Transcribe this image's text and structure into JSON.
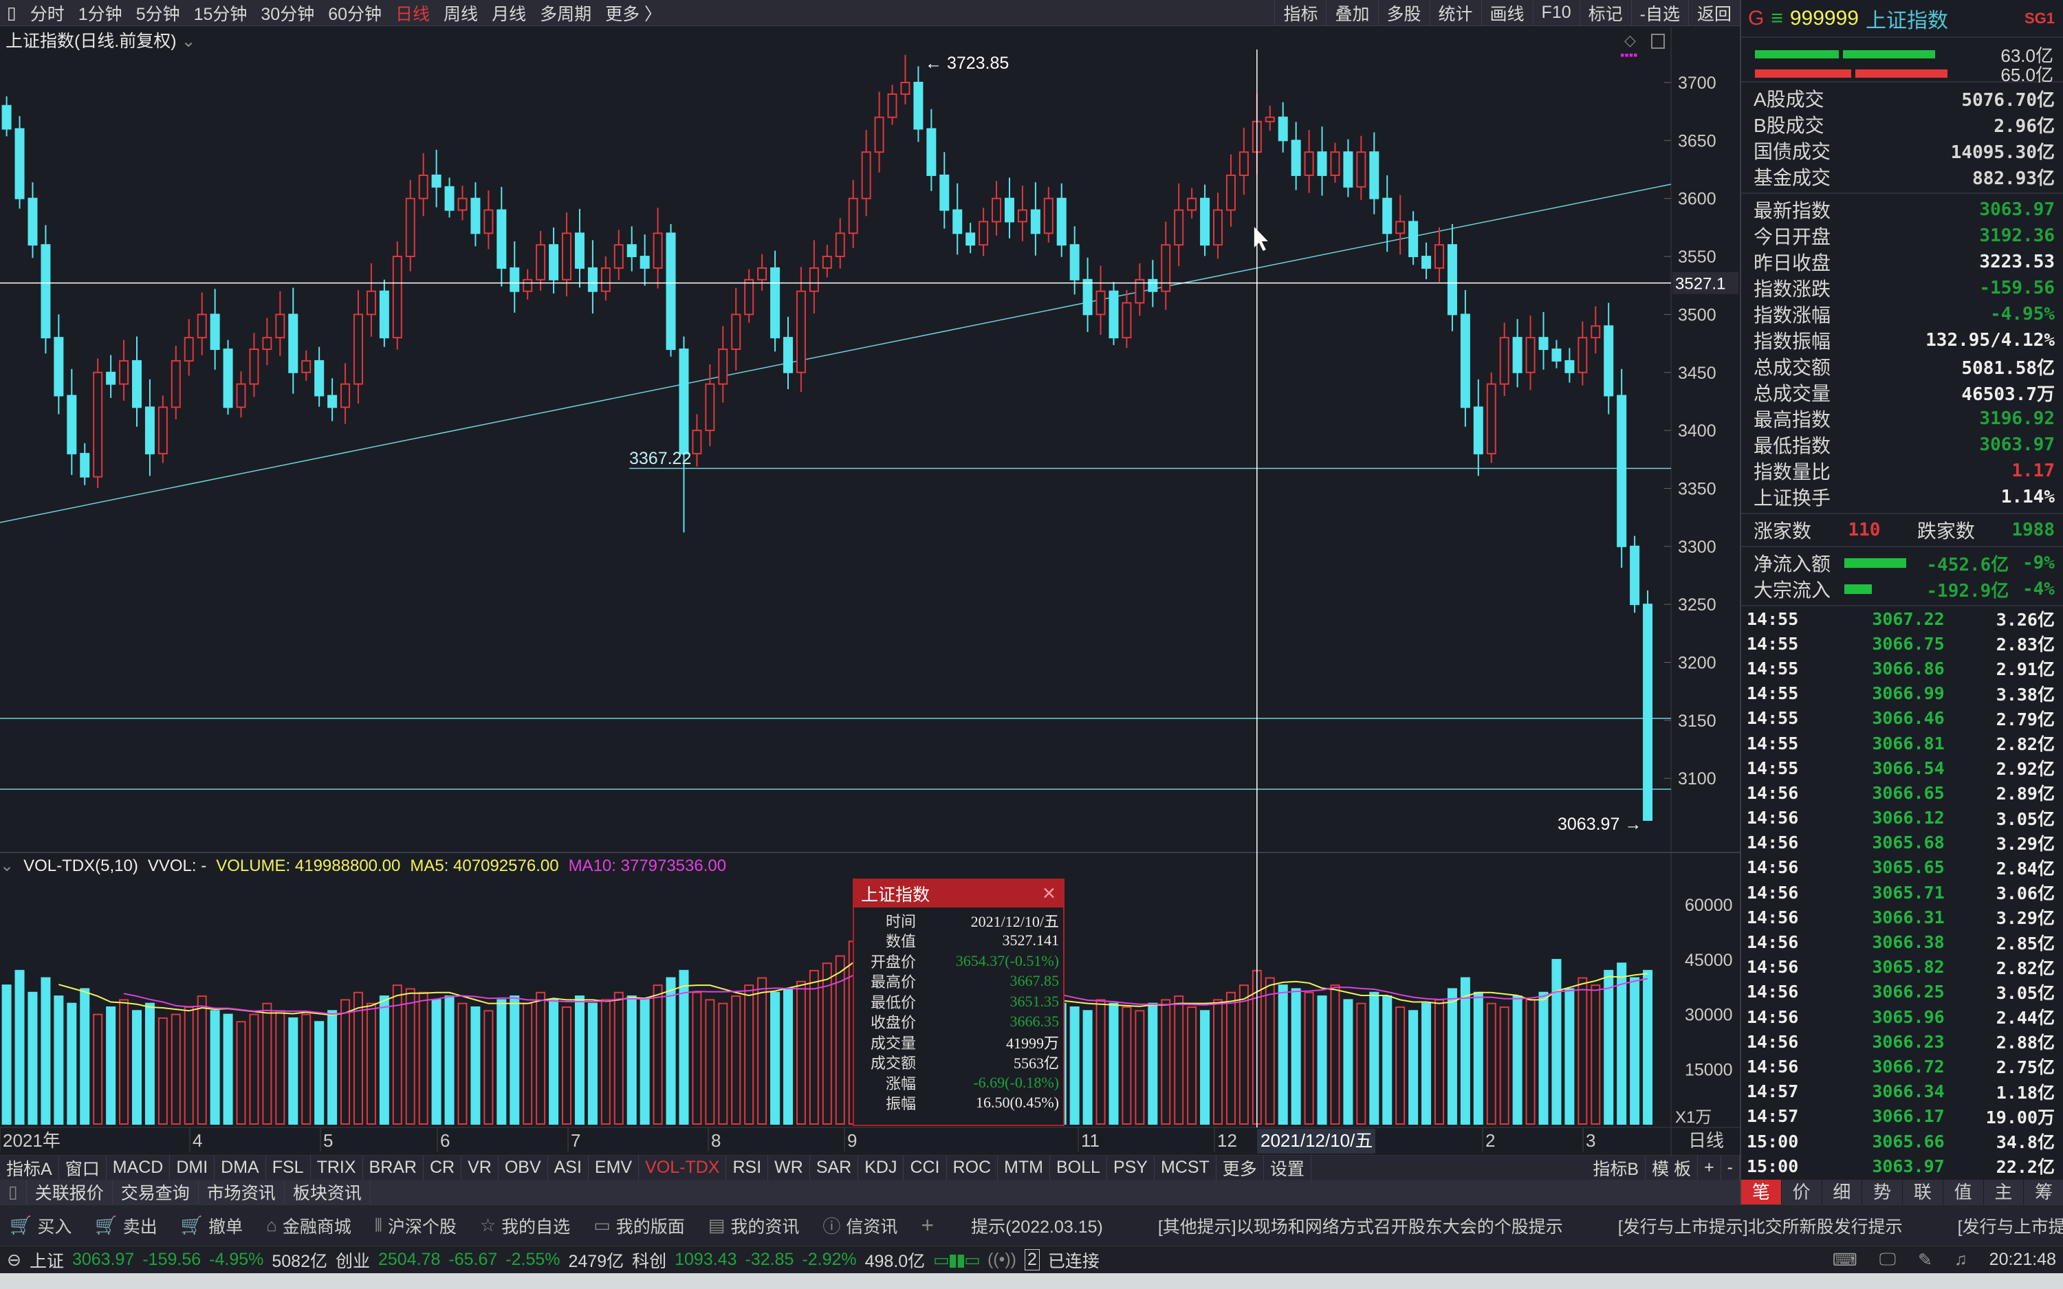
{
  "topbar": {
    "periods": [
      "分时",
      "1分钟",
      "5分钟",
      "15分钟",
      "30分钟",
      "60分钟",
      "日线",
      "周线",
      "月线",
      "多周期",
      "更多 〉"
    ],
    "active": "日线",
    "tools": [
      "指标",
      "叠加",
      "多股",
      "统计",
      "画线",
      "F10",
      "标记",
      "-自选",
      "返回"
    ]
  },
  "chart_title": "上证指数(日线.前复权)",
  "vol_header": {
    "name": "VOL-TDX(5,10)",
    "vvol": "VVOL: -",
    "volume": "VOLUME: 419988800.00",
    "ma5": "MA5: 407092576.00",
    "ma10": "MA10: 377973536.00"
  },
  "colors": {
    "up": "#e0383d",
    "down": "#55e6f0",
    "ma5": "#f2f25a",
    "ma10": "#e040e0",
    "bg": "#1b1d24"
  },
  "chart_data": {
    "type": "candlestick",
    "price_ticks": [
      3700,
      3650,
      3600,
      3550,
      3500,
      3450,
      3400,
      3350,
      3300,
      3250,
      3200,
      3150,
      3100
    ],
    "vol_ticks": [
      60000,
      45000,
      30000,
      15000
    ],
    "vol_unit": "X1万",
    "x_labels": [
      "2021年",
      "4",
      "5",
      "6",
      "7",
      "8",
      "9",
      "11",
      "12",
      "2",
      "3"
    ],
    "x_axis_period": "日线",
    "crosshair": {
      "price": "3527.1",
      "date": "2021/12/10/五"
    },
    "annotations": {
      "high": "3723.85",
      "mid_low": "3367.22",
      "last": "3063.97"
    },
    "closes": [
      3660,
      3600,
      3560,
      3480,
      3430,
      3380,
      3360,
      3450,
      3440,
      3460,
      3420,
      3380,
      3420,
      3460,
      3480,
      3500,
      3470,
      3420,
      3440,
      3470,
      3480,
      3500,
      3450,
      3460,
      3430,
      3420,
      3440,
      3500,
      3520,
      3480,
      3550,
      3600,
      3620,
      3610,
      3590,
      3600,
      3570,
      3590,
      3540,
      3520,
      3530,
      3560,
      3530,
      3570,
      3540,
      3520,
      3540,
      3560,
      3550,
      3540,
      3570,
      3470,
      3380,
      3400,
      3440,
      3470,
      3500,
      3530,
      3540,
      3480,
      3450,
      3520,
      3540,
      3550,
      3570,
      3600,
      3640,
      3670,
      3690,
      3700,
      3660,
      3620,
      3590,
      3570,
      3560,
      3580,
      3600,
      3580,
      3590,
      3570,
      3600,
      3560,
      3530,
      3500,
      3520,
      3480,
      3510,
      3530,
      3520,
      3560,
      3590,
      3600,
      3560,
      3590,
      3620,
      3640,
      3666.35,
      3670,
      3650,
      3620,
      3640,
      3620,
      3640,
      3610,
      3640,
      3600,
      3570,
      3580,
      3550,
      3540,
      3560,
      3500,
      3420,
      3380,
      3440,
      3480,
      3450,
      3480,
      3470,
      3460,
      3450,
      3480,
      3490,
      3430,
      3300,
      3250,
      3063.97
    ],
    "volumes": [
      38000,
      42000,
      36000,
      40000,
      35000,
      33000,
      37000,
      30000,
      32000,
      34000,
      31000,
      33000,
      29000,
      30000,
      32000,
      35000,
      31000,
      30000,
      28000,
      30000,
      33000,
      31000,
      29000,
      30000,
      28000,
      31000,
      34000,
      36000,
      33000,
      35000,
      38000,
      37000,
      36000,
      34000,
      35000,
      33000,
      32000,
      31000,
      34000,
      35000,
      33000,
      36000,
      34000,
      32000,
      35000,
      33000,
      34000,
      36000,
      35000,
      34000,
      38000,
      40000,
      42000,
      36000,
      34000,
      33000,
      35000,
      38000,
      40000,
      36000,
      37000,
      39000,
      42000,
      44000,
      46000,
      50000,
      54000,
      56000,
      52000,
      49000,
      46000,
      42000,
      40000,
      38000,
      36000,
      35000,
      36000,
      34000,
      33000,
      35000,
      34000,
      33000,
      32000,
      31000,
      34000,
      33000,
      32000,
      31000,
      33000,
      34000,
      35000,
      32000,
      31000,
      34000,
      36000,
      38000,
      41999,
      40000,
      38000,
      37000,
      36000,
      35000,
      38000,
      34000,
      33000,
      36000,
      35000,
      32000,
      31000,
      33000,
      34000,
      37000,
      40000,
      36000,
      33000,
      32000,
      35000,
      34000,
      36000,
      45000,
      37000,
      40000,
      38000,
      42000,
      44000,
      40000,
      42000
    ]
  },
  "tooltip": {
    "title": "上证指数",
    "rows": [
      {
        "label": "时间",
        "value": "2021/12/10/五",
        "color": "white"
      },
      {
        "label": "数值",
        "value": "3527.141",
        "color": "white"
      },
      {
        "label": "开盘价",
        "value": "3654.37(-0.51%)",
        "color": "green"
      },
      {
        "label": "最高价",
        "value": "3667.85",
        "color": "green"
      },
      {
        "label": "最低价",
        "value": "3651.35",
        "color": "green"
      },
      {
        "label": "收盘价",
        "value": "3666.35",
        "color": "green"
      },
      {
        "label": "成交量",
        "value": "41999万",
        "color": "white"
      },
      {
        "label": "成交额",
        "value": "5563亿",
        "color": "white"
      },
      {
        "label": "涨幅",
        "value": "-6.69(-0.18%)",
        "color": "green"
      },
      {
        "label": "振幅",
        "value": "16.50(0.45%)",
        "color": "white"
      }
    ]
  },
  "indicator_tabs": [
    "指标A",
    "窗口",
    "MACD",
    "DMI",
    "DMA",
    "FSL",
    "TRIX",
    "BRAR",
    "CR",
    "VR",
    "OBV",
    "ASI",
    "EMV",
    "VOL-TDX",
    "RSI",
    "WR",
    "SAR",
    "KDJ",
    "CCI",
    "ROC",
    "MTM",
    "BOLL",
    "PSY",
    "MCST",
    "更多",
    "设置"
  ],
  "indicator_active": "VOL-TDX",
  "indicator_right": [
    "指标B",
    "模 板",
    "+",
    "-"
  ],
  "sub_tabs": [
    "关联报价",
    "交易查询",
    "市场资讯",
    "板块资讯"
  ],
  "toolbar": [
    {
      "icon": "buy-cart-icon",
      "label": "买入"
    },
    {
      "icon": "sell-cart-icon",
      "label": "卖出"
    },
    {
      "icon": "cancel-cart-icon",
      "label": "撤单"
    },
    {
      "icon": "bag-icon",
      "label": "金融商城"
    },
    {
      "icon": "stock-icon",
      "label": "沪深个股"
    },
    {
      "icon": "star-icon",
      "label": "我的自选"
    },
    {
      "icon": "layout-icon",
      "label": "我的版面"
    },
    {
      "icon": "doc-icon",
      "label": "我的资讯"
    },
    {
      "icon": "info-icon",
      "label": "信资讯"
    }
  ],
  "notices": [
    "提示(2022.03.15)",
    "[其他提示]以现场和网络方式召开股东大会的个股提示",
    "[发行与上市提示]北交所新股发行提示",
    "[发行与上市提示]"
  ],
  "status": {
    "items": [
      {
        "name": "上证",
        "price": "3063.97",
        "chg": "-159.56",
        "pct": "-4.95%",
        "amt": "5082亿"
      },
      {
        "name": "创业",
        "price": "2504.78",
        "chg": "-65.67",
        "pct": "-2.55%",
        "amt": "2479亿"
      },
      {
        "name": "科创",
        "price": "1093.43",
        "chg": "-32.85",
        "pct": "-2.92%",
        "amt": "498.0亿"
      }
    ],
    "conn": "已连接",
    "conn_num": "2",
    "time": "20:21:48"
  },
  "panel": {
    "g": "G",
    "code": "999999",
    "name": "上证指数",
    "sg": "SG1",
    "bar_vals": [
      "63.0亿",
      "65.0亿"
    ],
    "turnover": [
      {
        "l": "A股成交",
        "v": "5076.70亿"
      },
      {
        "l": "B股成交",
        "v": "2.96亿"
      },
      {
        "l": "国债成交",
        "v": "14095.30亿"
      },
      {
        "l": "基金成交",
        "v": "882.93亿"
      }
    ],
    "stats": [
      {
        "l": "最新指数",
        "v": "3063.97",
        "c": "green"
      },
      {
        "l": "今日开盘",
        "v": "3192.36",
        "c": "green"
      },
      {
        "l": "昨日收盘",
        "v": "3223.53",
        "c": "white"
      },
      {
        "l": "指数涨跌",
        "v": "-159.56",
        "c": "green"
      },
      {
        "l": "指数涨幅",
        "v": "-4.95%",
        "c": "green"
      },
      {
        "l": "指数振幅",
        "v": "132.95/4.12%",
        "c": "white"
      },
      {
        "l": "总成交额",
        "v": "5081.58亿",
        "c": "white"
      },
      {
        "l": "总成交量",
        "v": "46503.7万",
        "c": "white"
      },
      {
        "l": "最高指数",
        "v": "3196.92",
        "c": "green"
      },
      {
        "l": "最低指数",
        "v": "3063.97",
        "c": "green"
      },
      {
        "l": "指数量比",
        "v": "1.17",
        "c": "red"
      },
      {
        "l": "上证换手",
        "v": "1.14%",
        "c": "white"
      }
    ],
    "breadth": {
      "up_l": "涨家数",
      "up": "110",
      "dn_l": "跌家数",
      "dn": "1988"
    },
    "flows": [
      {
        "l": "净流入额",
        "v": "-452.6亿",
        "p": "-9%",
        "bar": 0.9
      },
      {
        "l": "大宗流入",
        "v": "-192.9亿",
        "p": "-4%",
        "bar": 0.4
      }
    ],
    "ticks": [
      [
        "14:55",
        "3067.22",
        "3.26亿"
      ],
      [
        "14:55",
        "3066.75",
        "2.83亿"
      ],
      [
        "14:55",
        "3066.86",
        "2.91亿"
      ],
      [
        "14:55",
        "3066.99",
        "3.38亿"
      ],
      [
        "14:55",
        "3066.46",
        "2.79亿"
      ],
      [
        "14:55",
        "3066.81",
        "2.82亿"
      ],
      [
        "14:55",
        "3066.54",
        "2.92亿"
      ],
      [
        "14:56",
        "3066.65",
        "2.89亿"
      ],
      [
        "14:56",
        "3066.12",
        "3.05亿"
      ],
      [
        "14:56",
        "3065.68",
        "3.29亿"
      ],
      [
        "14:56",
        "3065.65",
        "2.84亿"
      ],
      [
        "14:56",
        "3065.71",
        "3.06亿"
      ],
      [
        "14:56",
        "3066.31",
        "3.29亿"
      ],
      [
        "14:56",
        "3066.38",
        "2.85亿"
      ],
      [
        "14:56",
        "3065.82",
        "2.82亿"
      ],
      [
        "14:56",
        "3066.25",
        "3.05亿"
      ],
      [
        "14:56",
        "3065.96",
        "2.44亿"
      ],
      [
        "14:56",
        "3066.23",
        "2.88亿"
      ],
      [
        "14:56",
        "3066.72",
        "2.75亿"
      ],
      [
        "14:57",
        "3066.34",
        "1.18亿"
      ],
      [
        "14:57",
        "3066.17",
        "19.00万"
      ],
      [
        "15:00",
        "3065.66",
        "34.8亿"
      ],
      [
        "15:00",
        "3063.97",
        "22.2亿"
      ]
    ],
    "tabs": [
      "笔",
      "价",
      "细",
      "势",
      "联",
      "值",
      "主",
      "筹"
    ],
    "tab_active": "笔"
  }
}
